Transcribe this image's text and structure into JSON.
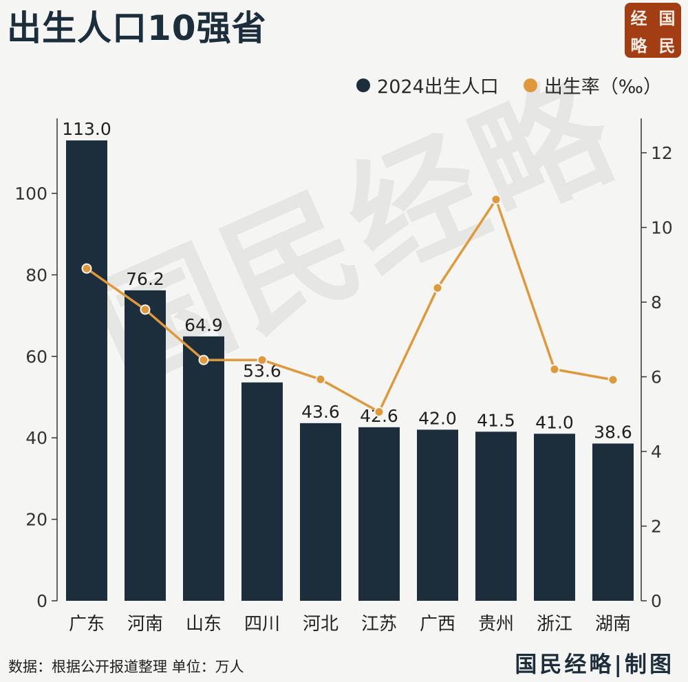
{
  "header": {
    "title": "出生人口10强省"
  },
  "logo": {
    "chars": [
      "经",
      "国",
      "略",
      "民"
    ]
  },
  "watermark": "国民经略",
  "legend": {
    "items": [
      {
        "label": "2024出生人口",
        "color": "#1c2e3b"
      },
      {
        "label": "出生率（‰）",
        "color": "#e0993a"
      }
    ]
  },
  "chart_data": {
    "type": "bar",
    "categories": [
      "广东",
      "河南",
      "山东",
      "四川",
      "河北",
      "江苏",
      "广西",
      "贵州",
      "浙江",
      "湖南"
    ],
    "series": [
      {
        "name": "2024出生人口",
        "type": "bar",
        "axis": "left",
        "values": [
          113.0,
          76.2,
          64.9,
          53.6,
          43.6,
          42.6,
          42.0,
          41.5,
          41.0,
          38.6
        ],
        "value_labels": [
          "113.0",
          "76.2",
          "64.9",
          "53.6",
          "43.6",
          "42.6",
          "42.0",
          "41.5",
          "41.0",
          "38.6"
        ]
      },
      {
        "name": "出生率（‰）",
        "type": "line",
        "axis": "right",
        "values": [
          8.9,
          7.8,
          6.45,
          6.45,
          5.93,
          5.06,
          8.38,
          10.75,
          6.2,
          5.92
        ]
      }
    ],
    "left_axis": {
      "ylim": [
        0,
        120
      ],
      "ticks": [
        0,
        20,
        40,
        60,
        80,
        100
      ]
    },
    "right_axis": {
      "ylim": [
        0,
        12.8
      ],
      "ticks": [
        0,
        2,
        4,
        6,
        8,
        10,
        12
      ]
    },
    "bar_color": "#1c2e3b",
    "line_color": "#e0993a",
    "grid": false
  },
  "footer": {
    "source": "数据：根据公开报道整理   单位：万人",
    "credit": "国民经略|制图"
  }
}
